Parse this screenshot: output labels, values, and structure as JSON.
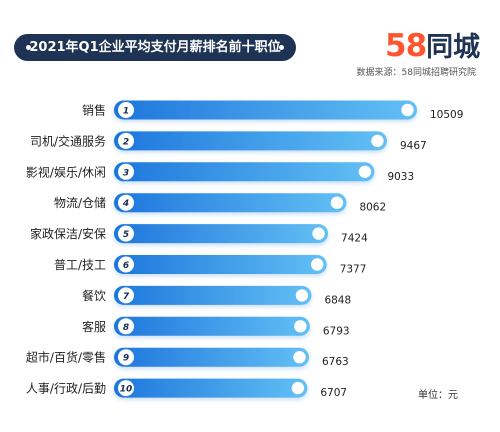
{
  "header": {
    "title": "2021年Q1企业平均支付月薪排名前十职位",
    "logo_num": "58",
    "logo_cn": "同城",
    "source": "数据来源：58同城招聘研究院"
  },
  "unit": "单位：元",
  "colors": {
    "bar_start": "#1e76dc",
    "bar_end": "#63c0f4",
    "title_bg": "#1f3454",
    "brand_orange": "#ff552e"
  },
  "chart_data": {
    "type": "bar",
    "orientation": "horizontal",
    "title": "2021年Q1企业平均支付月薪排名前十职位",
    "categories": [
      "销售",
      "司机/交通服务",
      "影视/娱乐/休闲",
      "物流/仓储",
      "家政保洁/安保",
      "普工/技工",
      "餐饮",
      "客服",
      "超市/百货/零售",
      "人事/行政/后勤"
    ],
    "ranks": [
      "1",
      "2",
      "3",
      "4",
      "5",
      "6",
      "7",
      "8",
      "9",
      "10"
    ],
    "values": [
      10509,
      9467,
      9033,
      8062,
      7424,
      7377,
      6848,
      6793,
      6763,
      6707
    ],
    "unit": "元"
  }
}
